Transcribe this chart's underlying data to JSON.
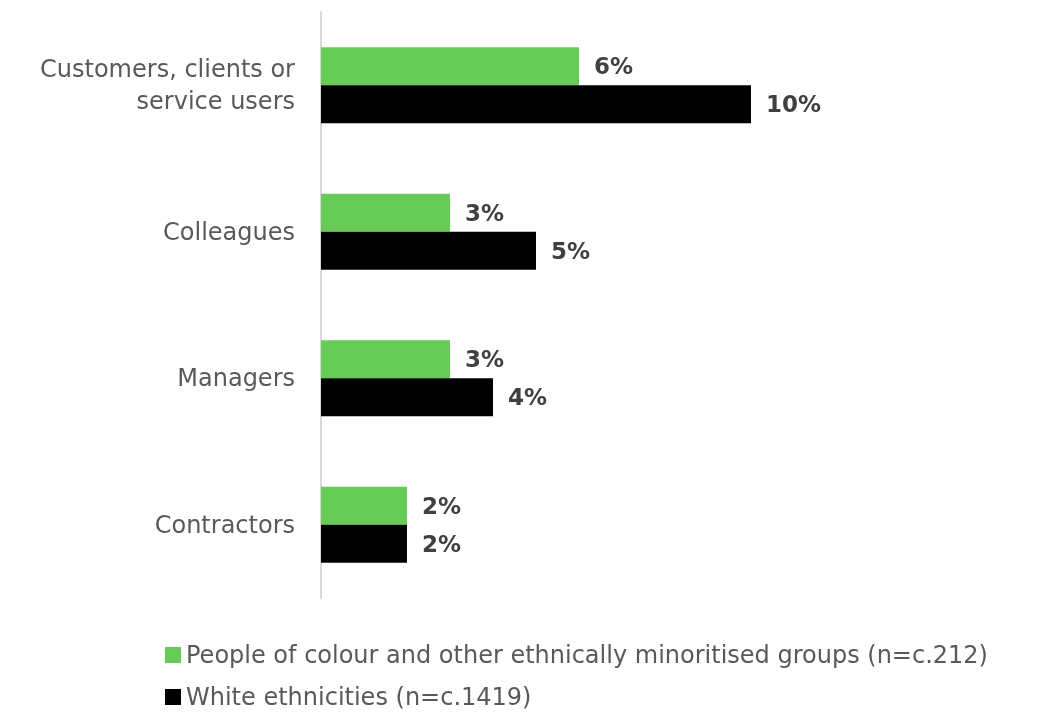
{
  "chart_data": {
    "type": "bar",
    "orientation": "horizontal",
    "categories": [
      "Customers, clients or\nservice users",
      "Colleagues",
      "Managers",
      "Contractors"
    ],
    "series": [
      {
        "name": "People of colour and other ethnically minoritised groups (n=c.212)",
        "color": "#66cc55",
        "values": [
          6,
          3,
          3,
          2
        ],
        "value_labels": [
          "6%",
          "3%",
          "3%",
          "2%"
        ]
      },
      {
        "name": "White ethnicities (n=c.1419)",
        "color": "#000000",
        "values": [
          10,
          5,
          4,
          2
        ],
        "value_labels": [
          "10%",
          "5%",
          "4%",
          "2%"
        ]
      }
    ],
    "legend": "bottom"
  }
}
